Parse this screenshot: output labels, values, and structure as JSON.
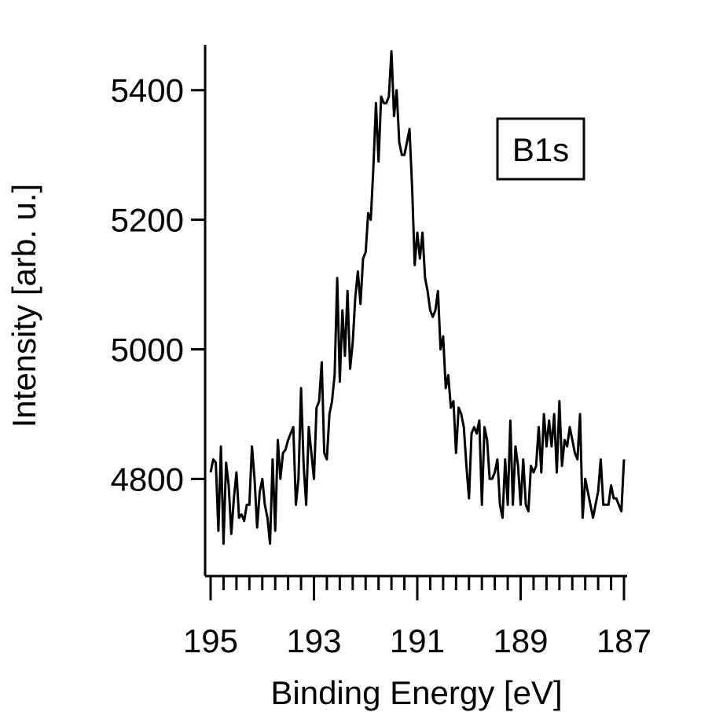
{
  "chart_data": {
    "type": "line",
    "title": "",
    "xlabel": "Binding Energy [eV]",
    "ylabel": "Intensity [arb. u.]",
    "xlim": [
      195,
      187
    ],
    "ylim": [
      4650,
      5470
    ],
    "x_reversed": true,
    "x_ticks": [
      195,
      193,
      191,
      189,
      187
    ],
    "x_tick_labels": [
      "195",
      "193",
      "191",
      "189",
      "187"
    ],
    "x_minor_step": 0.25,
    "y_ticks": [
      4800,
      5000,
      5200,
      5400
    ],
    "y_tick_labels": [
      "4800",
      "5000",
      "5200",
      "5400"
    ],
    "grid": false,
    "legend": {
      "label": "B1s",
      "placement": "top-right"
    },
    "series": [
      {
        "name": "B1s",
        "color": "#000000",
        "x": [
          195.0,
          194.95,
          194.9,
          194.85,
          194.8,
          194.75,
          194.7,
          194.65,
          194.6,
          194.55,
          194.5,
          194.45,
          194.4,
          194.35,
          194.3,
          194.25,
          194.2,
          194.15,
          194.1,
          194.05,
          194.0,
          193.95,
          193.9,
          193.85,
          193.8,
          193.75,
          193.7,
          193.65,
          193.6,
          193.55,
          193.5,
          193.45,
          193.4,
          193.35,
          193.3,
          193.25,
          193.2,
          193.15,
          193.1,
          193.05,
          193.0,
          192.95,
          192.9,
          192.85,
          192.8,
          192.75,
          192.7,
          192.65,
          192.6,
          192.55,
          192.5,
          192.45,
          192.4,
          192.35,
          192.3,
          192.25,
          192.2,
          192.15,
          192.1,
          192.05,
          192.0,
          191.95,
          191.9,
          191.85,
          191.8,
          191.75,
          191.7,
          191.65,
          191.6,
          191.55,
          191.5,
          191.45,
          191.4,
          191.35,
          191.3,
          191.25,
          191.2,
          191.15,
          191.1,
          191.05,
          191.0,
          190.95,
          190.9,
          190.85,
          190.8,
          190.75,
          190.7,
          190.65,
          190.6,
          190.55,
          190.5,
          190.45,
          190.4,
          190.35,
          190.3,
          190.25,
          190.2,
          190.15,
          190.1,
          190.05,
          190.0,
          189.95,
          189.9,
          189.85,
          189.8,
          189.75,
          189.7,
          189.65,
          189.6,
          189.55,
          189.5,
          189.45,
          189.4,
          189.35,
          189.3,
          189.25,
          189.2,
          189.15,
          189.1,
          189.05,
          189.0,
          188.95,
          188.9,
          188.85,
          188.8,
          188.75,
          188.7,
          188.65,
          188.6,
          188.55,
          188.5,
          188.45,
          188.4,
          188.35,
          188.3,
          188.25,
          188.2,
          188.15,
          188.1,
          188.05,
          188.0,
          187.95,
          187.9,
          187.85,
          187.8,
          187.75,
          187.7,
          187.65,
          187.6,
          187.55,
          187.5,
          187.45,
          187.4,
          187.35,
          187.3,
          187.25,
          187.2,
          187.15,
          187.1,
          187.05,
          187.0
        ],
        "y": [
          4810,
          4830,
          4825,
          4720,
          4850,
          4700,
          4825,
          4790,
          4715,
          4770,
          4810,
          4740,
          4745,
          4735,
          4760,
          4760,
          4850,
          4800,
          4725,
          4780,
          4800,
          4760,
          4740,
          4700,
          4830,
          4720,
          4860,
          4800,
          4840,
          4845,
          4860,
          4870,
          4880,
          4760,
          4800,
          4940,
          4820,
          4760,
          4880,
          4840,
          4800,
          4910,
          4920,
          4980,
          4840,
          4830,
          4900,
          4920,
          4960,
          5110,
          4950,
          5060,
          4990,
          5090,
          4970,
          5010,
          5080,
          5120,
          5070,
          5140,
          5150,
          5210,
          5200,
          5280,
          5380,
          5290,
          5390,
          5380,
          5380,
          5390,
          5460,
          5360,
          5400,
          5320,
          5300,
          5300,
          5320,
          5340,
          5250,
          5130,
          5180,
          5140,
          5180,
          5110,
          5090,
          5060,
          5050,
          5060,
          5090,
          5000,
          5020,
          4940,
          4960,
          4910,
          4920,
          4840,
          4910,
          4900,
          4880,
          4820,
          4770,
          4870,
          4880,
          4870,
          4890,
          4760,
          4880,
          4860,
          4800,
          4800,
          4810,
          4830,
          4760,
          4740,
          4830,
          4760,
          4890,
          4760,
          4850,
          4820,
          4760,
          4830,
          4760,
          4750,
          4820,
          4810,
          4820,
          4880,
          4810,
          4900,
          4850,
          4890,
          4850,
          4900,
          4810,
          4920,
          4820,
          4860,
          4850,
          4880,
          4860,
          4840,
          4830,
          4900,
          4740,
          4800,
          4780,
          4760,
          4740,
          4760,
          4780,
          4830,
          4760,
          4760,
          4760,
          4790,
          4770,
          4770,
          4760,
          4750,
          4830
        ]
      }
    ]
  }
}
